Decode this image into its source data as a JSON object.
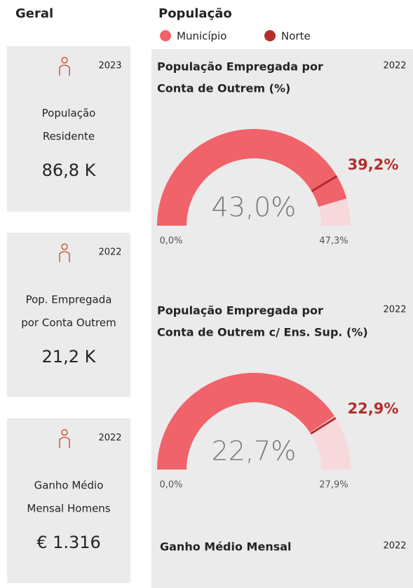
{
  "left": {
    "title": "Geral",
    "cards": [
      {
        "year": "2023",
        "label": [
          "População",
          "Residente"
        ],
        "value": "86,8 K"
      },
      {
        "year": "2022",
        "label": [
          "Pop. Empregada",
          "por Conta Outrem"
        ],
        "value": "21,2 K"
      },
      {
        "year": "2022",
        "label": [
          "Ganho Médio",
          "Mensal Homens"
        ],
        "value": "€ 1.316"
      }
    ]
  },
  "right": {
    "title": "População",
    "legend": [
      {
        "name": "Município",
        "color": "#f0636a"
      },
      {
        "name": "Norte",
        "color": "#b32e2c"
      }
    ],
    "gauges": [
      {
        "title": [
          "População Empregada por",
          "Conta de Outrem (%)"
        ],
        "year": "2022",
        "value": 43.0,
        "value_label": "43,0%",
        "target": 39.2,
        "target_label": "39,2%",
        "min": 0,
        "min_label": "0,0%",
        "max": 47.3,
        "max_label": "47,3%"
      },
      {
        "title": [
          "População Empregada por",
          "Conta de Outrem c/ Ens. Sup. (%)"
        ],
        "year": "2022",
        "value": 22.7,
        "value_label": "22,7%",
        "target": 22.9,
        "target_label": "22,9%",
        "min": 0,
        "min_label": "0,0%",
        "max": 27.9,
        "max_label": "27,9%"
      }
    ],
    "footer": {
      "title": "Ganho Médio Mensal",
      "year": "2022"
    }
  }
}
